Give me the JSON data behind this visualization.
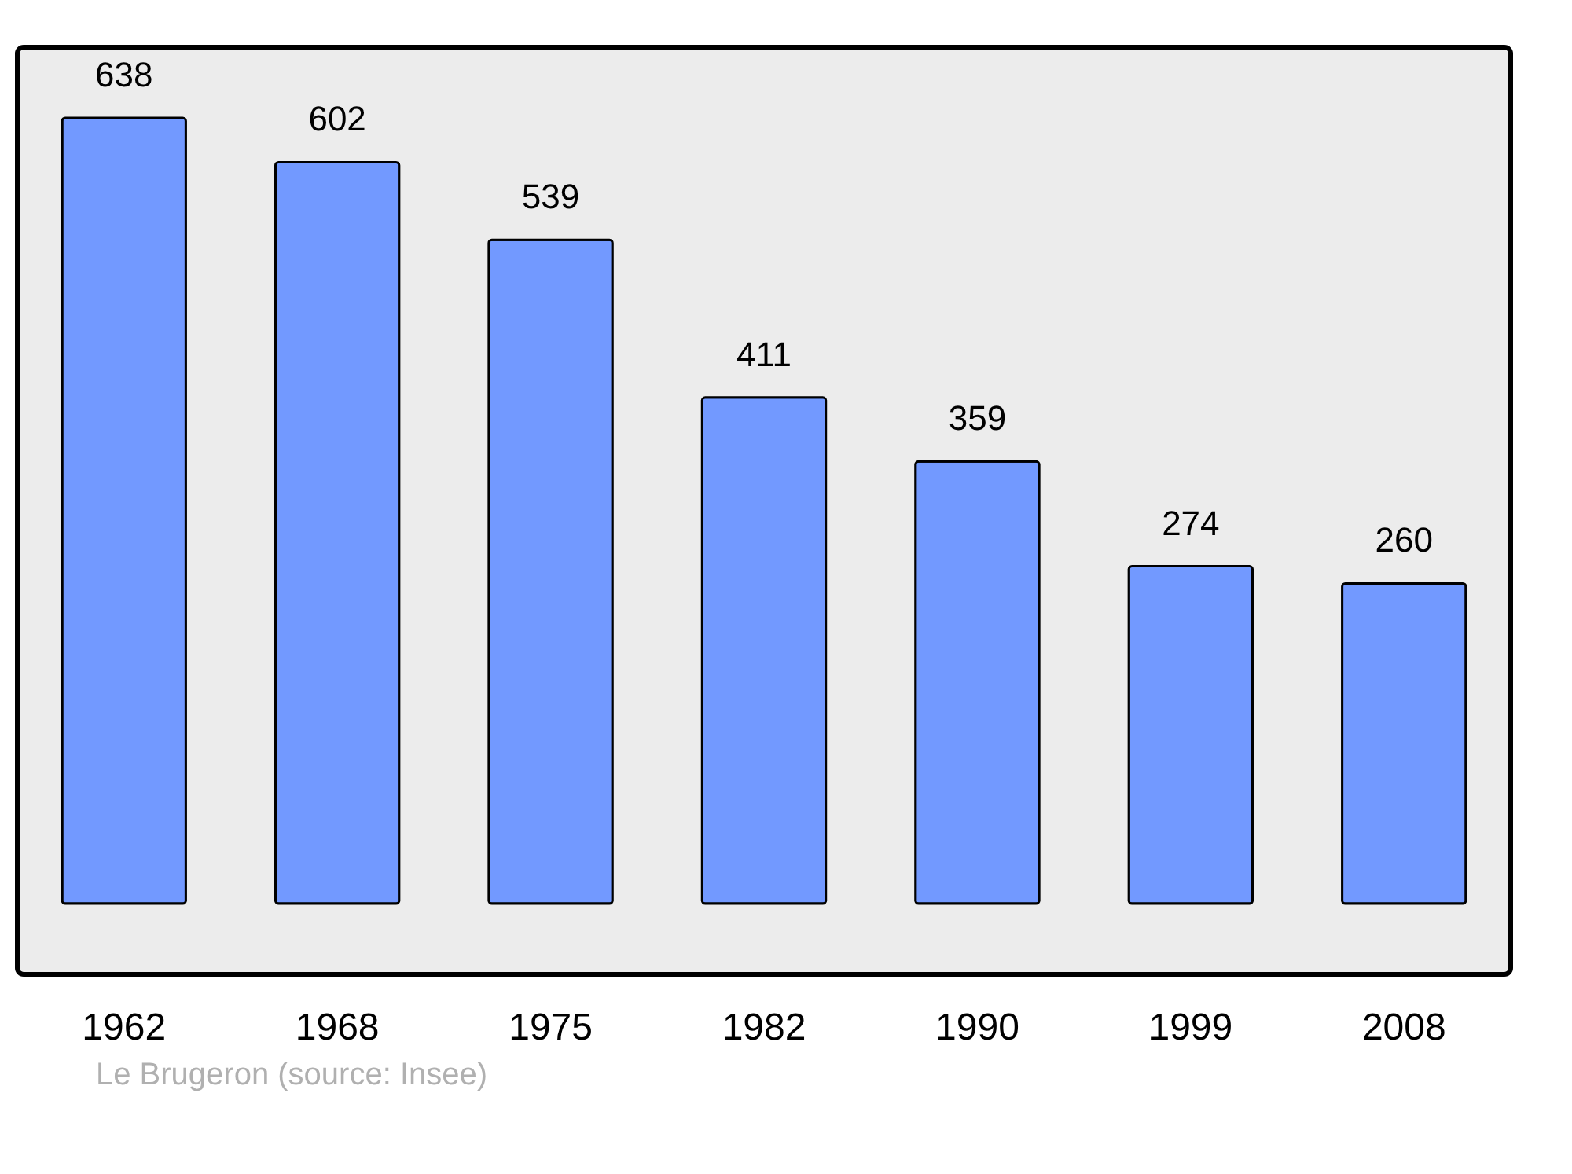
{
  "chart_data": {
    "type": "bar",
    "categories": [
      "1962",
      "1968",
      "1975",
      "1982",
      "1990",
      "1999",
      "2008"
    ],
    "values": [
      638,
      602,
      539,
      411,
      359,
      274,
      260
    ],
    "color": "#7299ff",
    "data_labels": true,
    "grid": false,
    "annotations": [
      "Le Brugeron    (source: Insee)"
    ]
  }
}
